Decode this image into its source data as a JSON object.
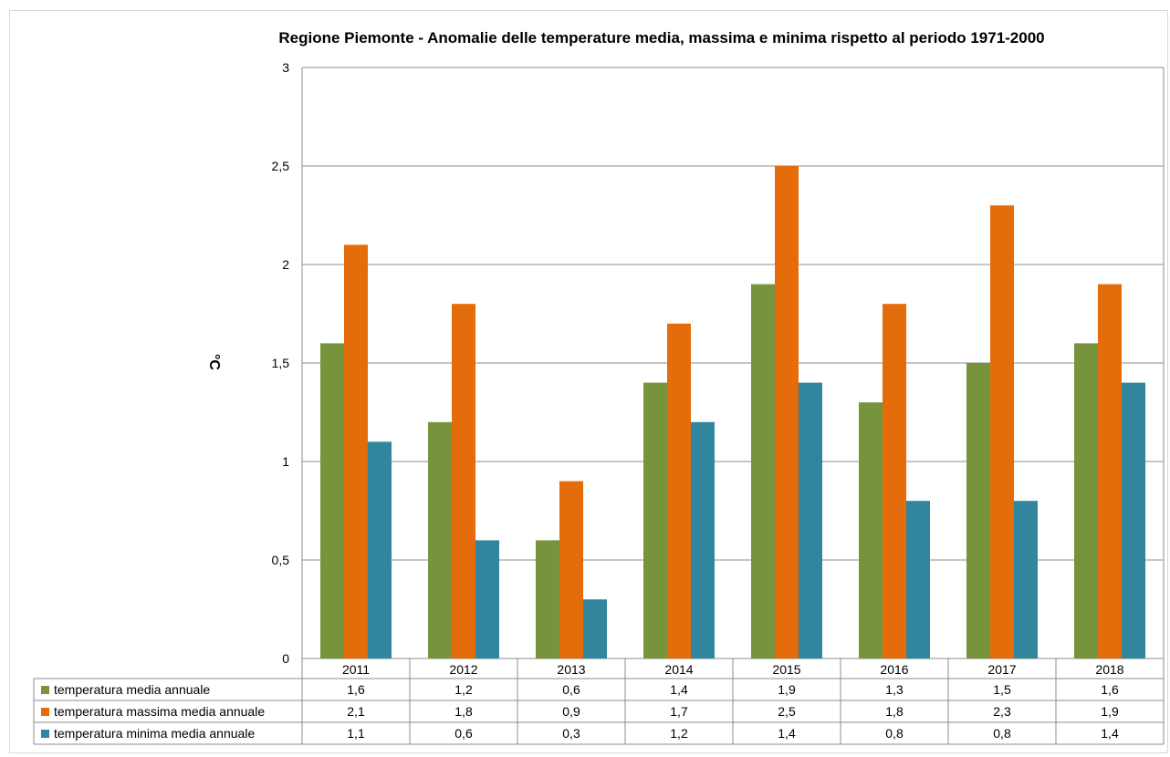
{
  "chart_data": {
    "type": "bar",
    "title": "Regione Piemonte - Anomalie delle temperature media, massima e minima rispetto al periodo 1971-2000",
    "ylabel": "°C",
    "xlabel": "",
    "ylim": [
      0,
      3
    ],
    "yticks": [
      0,
      0.5,
      1,
      1.5,
      2,
      2.5,
      3
    ],
    "ytick_labels": [
      "0",
      "0,5",
      "1",
      "1,5",
      "2",
      "2,5",
      "3"
    ],
    "grid": true,
    "legend": "data table below chart",
    "categories": [
      "2011",
      "2012",
      "2013",
      "2014",
      "2015",
      "2016",
      "2017",
      "2018"
    ],
    "series": [
      {
        "name": "temperatura media annuale",
        "color": "#77933c",
        "values": [
          1.6,
          1.2,
          0.6,
          1.4,
          1.9,
          1.3,
          1.5,
          1.6
        ],
        "labels": [
          "1,6",
          "1,2",
          "0,6",
          "1,4",
          "1,9",
          "1,3",
          "1,5",
          "1,6"
        ]
      },
      {
        "name": "temperatura massima media annuale",
        "color": "#e46c0a",
        "values": [
          2.1,
          1.8,
          0.9,
          1.7,
          2.5,
          1.8,
          2.3,
          1.9
        ],
        "labels": [
          "2,1",
          "1,8",
          "0,9",
          "1,7",
          "2,5",
          "1,8",
          "2,3",
          "1,9"
        ]
      },
      {
        "name": "temperatura minima media annuale",
        "color": "#31859c",
        "values": [
          1.1,
          0.6,
          0.3,
          1.2,
          1.4,
          0.8,
          0.8,
          1.4
        ],
        "labels": [
          "1,1",
          "0,6",
          "0,3",
          "1,2",
          "1,4",
          "0,8",
          "0,8",
          "1,4"
        ]
      }
    ]
  }
}
